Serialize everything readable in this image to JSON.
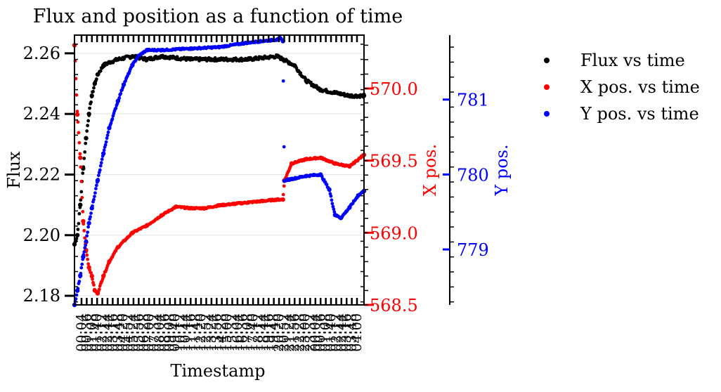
{
  "chart_data": {
    "type": "scatter",
    "title": "Flux and position as a function of time",
    "xlabel": "Timestamp",
    "ylabels": {
      "flux": "Flux",
      "xpos": "X pos.",
      "ypos": "Y pos."
    },
    "x_tick_labels": [
      "00:04",
      "00:36",
      "01:08",
      "01:40",
      "02:12",
      "02:44",
      "03:16",
      "03:48",
      "04:20",
      "04:52",
      "05:24",
      "05:56",
      "06:28",
      "07:00",
      "07:32",
      "08:04",
      "08:36",
      "09:08",
      "09:40",
      "10:12",
      "10:44",
      "11:16",
      "11:48",
      "12:20",
      "12:52",
      "13:24",
      "13:56",
      "14:28",
      "15:00",
      "15:32",
      "16:04",
      "16:36",
      "17:08",
      "17:40",
      "18:12",
      "18:44",
      "19:16",
      "19:48",
      "20:20",
      "20:52",
      "21:24",
      "21:56",
      "22:28",
      "23:00",
      "23:32",
      "00:04",
      "00:36",
      "01:08",
      "01:40",
      "02:12",
      "02:44",
      "03:16",
      "03:48",
      "04:00"
    ],
    "axes": {
      "flux": {
        "range": [
          2.177,
          2.266
        ],
        "ticks": [
          2.18,
          2.2,
          2.22,
          2.24,
          2.26
        ],
        "tick_labels": [
          "2.18",
          "2.20",
          "2.22",
          "2.24",
          "2.26"
        ],
        "color": "#000000"
      },
      "xpos": {
        "range": [
          568.5,
          570.37
        ],
        "ticks": [
          568.5,
          569.0,
          569.5,
          570.0
        ],
        "tick_labels": [
          "568.5",
          "569.0",
          "569.5",
          "570.0"
        ],
        "color": "#ff0000"
      },
      "ypos": {
        "range": [
          778.26,
          781.86
        ],
        "ticks": [
          779,
          780,
          781
        ],
        "tick_labels": [
          "779",
          "780",
          "781"
        ],
        "color": "#0000ff"
      }
    },
    "x_range": [
      0,
      100
    ],
    "series": [
      {
        "name": "Flux vs time",
        "axis": "flux",
        "color": "#000000",
        "x": [
          0,
          1,
          2,
          3,
          4,
          5,
          6,
          7,
          8,
          10,
          12,
          15,
          20,
          25,
          30,
          40,
          50,
          60,
          70,
          72,
          74,
          76,
          80,
          85,
          90,
          95,
          100
        ],
        "y": [
          2.197,
          2.2,
          2.21,
          2.222,
          2.232,
          2.24,
          2.246,
          2.25,
          2.253,
          2.256,
          2.257,
          2.258,
          2.259,
          2.258,
          2.259,
          2.258,
          2.258,
          2.258,
          2.259,
          2.258,
          2.257,
          2.256,
          2.251,
          2.248,
          2.247,
          2.246,
          2.246
        ]
      },
      {
        "name": "X pos. vs time",
        "axis": "xpos",
        "color": "#ff0000",
        "x": [
          0,
          1,
          2,
          3,
          4,
          5,
          6,
          7,
          8,
          10,
          12,
          15,
          20,
          25,
          30,
          35,
          40,
          45,
          50,
          55,
          60,
          65,
          70,
          72,
          72.5,
          75,
          80,
          85,
          90,
          95,
          100
        ],
        "y": [
          570.3,
          569.82,
          569.52,
          569.08,
          568.88,
          568.76,
          568.7,
          568.6,
          568.58,
          568.7,
          568.8,
          568.9,
          569.0,
          569.05,
          569.12,
          569.18,
          569.17,
          569.17,
          569.19,
          569.2,
          569.21,
          569.22,
          569.23,
          569.23,
          569.36,
          569.48,
          569.51,
          569.52,
          569.48,
          569.46,
          569.54
        ]
      },
      {
        "name": "Y pos. vs time",
        "axis": "ypos",
        "color": "#0000ff",
        "x": [
          0,
          1,
          2,
          3,
          4,
          5,
          6,
          8,
          10,
          12,
          15,
          17,
          20,
          22,
          25,
          30,
          40,
          50,
          60,
          70,
          71,
          72,
          72.5,
          75,
          80,
          85,
          88,
          90,
          92,
          95,
          98,
          100
        ],
        "y": [
          778.26,
          778.45,
          778.65,
          778.9,
          779.1,
          779.35,
          779.55,
          779.92,
          780.28,
          780.62,
          780.98,
          781.2,
          781.46,
          781.58,
          781.66,
          781.66,
          781.68,
          781.7,
          781.76,
          781.8,
          781.82,
          781.78,
          779.92,
          779.94,
          779.98,
          780.0,
          779.8,
          779.46,
          779.42,
          779.56,
          779.72,
          779.78
        ]
      }
    ],
    "legend": {
      "location": "right",
      "entries": [
        "Flux vs time",
        "X pos. vs time",
        "Y pos. vs time"
      ]
    },
    "grid": "horizontal"
  }
}
